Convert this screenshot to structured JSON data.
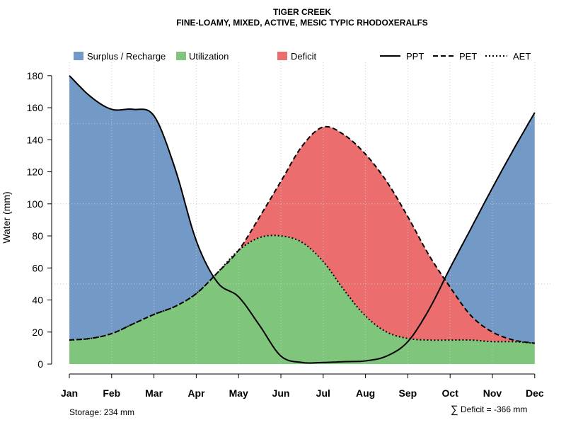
{
  "chart_data": {
    "type": "area",
    "title": "TIGER CREEK",
    "subtitle": "FINE-LOAMY, MIXED, ACTIVE, MESIC TYPIC RHODOXERALFS",
    "xlabel": "",
    "ylabel": "Water (mm)",
    "categories": [
      "Jan",
      "Feb",
      "Mar",
      "Apr",
      "May",
      "Jun",
      "Jul",
      "Aug",
      "Sep",
      "Oct",
      "Nov",
      "Dec"
    ],
    "x": [
      1,
      1.5,
      2,
      2.5,
      3,
      3.5,
      4,
      4.5,
      5,
      5.5,
      6,
      6.5,
      7,
      7.5,
      8,
      8.5,
      9,
      9.5,
      10,
      10.5,
      11,
      11.5,
      12
    ],
    "ylim": [
      0,
      180
    ],
    "yticks": [
      0,
      20,
      40,
      60,
      80,
      100,
      120,
      140,
      160,
      180
    ],
    "grid": true,
    "series": [
      {
        "name": "PPT",
        "line": "solid",
        "values": [
          180,
          167,
          159,
          159,
          155,
          122,
          77,
          51,
          42,
          24,
          5,
          1,
          1,
          1.5,
          2,
          5,
          14,
          34,
          60,
          85,
          110,
          134,
          157
        ]
      },
      {
        "name": "PET",
        "line": "dashed",
        "values": [
          15,
          16,
          19,
          25,
          31,
          36,
          44,
          57,
          71,
          92,
          114,
          136,
          148,
          143,
          131,
          114,
          92,
          68,
          48,
          30,
          20,
          15,
          13
        ]
      },
      {
        "name": "AET",
        "line": "dotted",
        "values": [
          15,
          16,
          19,
          25,
          31,
          36,
          44,
          57,
          71,
          79,
          80,
          76,
          64,
          46,
          30,
          20,
          16,
          15,
          15,
          15,
          14,
          14,
          13
        ]
      }
    ],
    "areas": [
      {
        "name": "Surplus / Recharge",
        "color": "#7399c6",
        "between": [
          "PPT",
          "PET"
        ],
        "where": "PPT above PET"
      },
      {
        "name": "Utilization",
        "color": "#80c57c",
        "between": [
          "0",
          "AET"
        ]
      },
      {
        "name": "Deficit",
        "color": "#eb6d6d",
        "between": [
          "AET",
          "PET"
        ]
      }
    ],
    "legend": {
      "position": "top",
      "fills": [
        {
          "name": "Surplus / Recharge",
          "color": "#7399c6"
        },
        {
          "name": "Utilization",
          "color": "#80c57c"
        },
        {
          "name": "Deficit",
          "color": "#eb6d6d"
        }
      ],
      "lines": [
        {
          "name": "PPT",
          "style": "solid"
        },
        {
          "name": "PET",
          "style": "dashed"
        },
        {
          "name": "AET",
          "style": "dotted"
        }
      ]
    },
    "annotations": {
      "storage": "Storage: 234 mm",
      "deficit_symbol": "∑",
      "deficit": "Deficit = -366 mm"
    }
  }
}
